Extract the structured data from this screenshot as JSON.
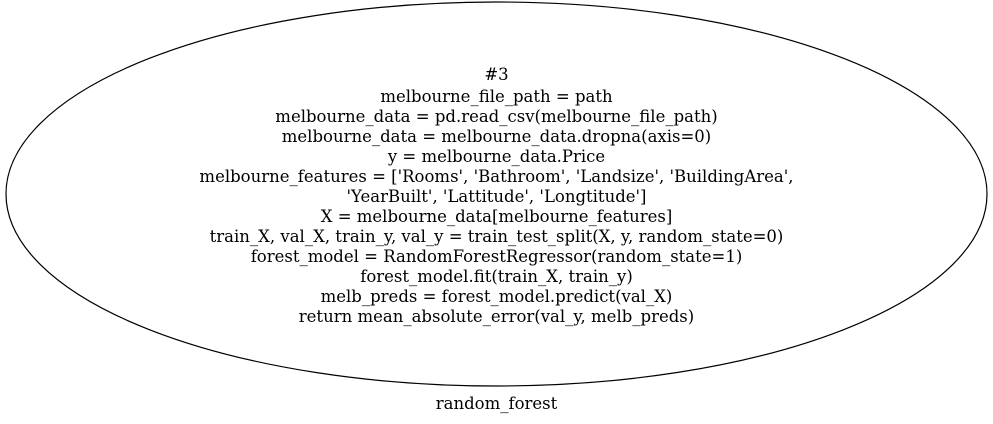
{
  "node": {
    "id_label": "#3",
    "lines": [
      "melbourne_file_path = path",
      "melbourne_data = pd.read_csv(melbourne_file_path)",
      "melbourne_data = melbourne_data.dropna(axis=0)",
      "y = melbourne_data.Price",
      "melbourne_features = ['Rooms', 'Bathroom', 'Landsize', 'BuildingArea',",
      "'YearBuilt', 'Lattitude', 'Longtitude']",
      "X = melbourne_data[melbourne_features]",
      "train_X, val_X, train_y, val_y = train_test_split(X, y, random_state=0)",
      "forest_model = RandomForestRegressor(random_state=1)",
      "forest_model.fit(train_X, train_y)",
      "melb_preds = forest_model.predict(val_X)",
      "return mean_absolute_error(val_y, melb_preds)"
    ]
  },
  "caption": "random_forest"
}
